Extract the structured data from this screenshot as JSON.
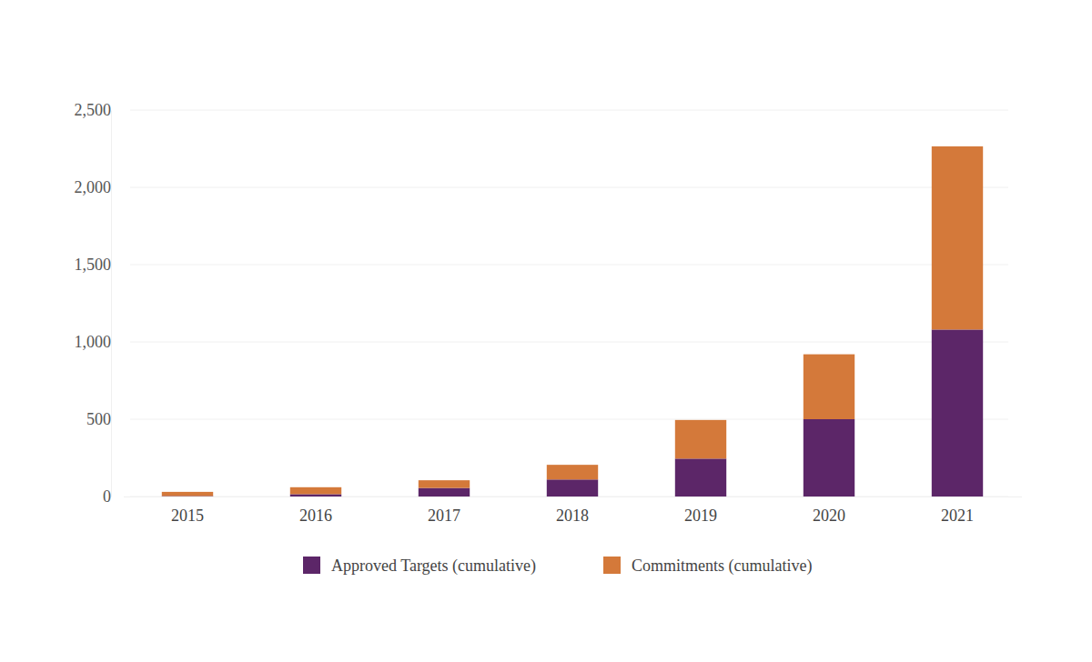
{
  "chart_data": {
    "type": "bar",
    "stacked": true,
    "grid": true,
    "legend": "bottom",
    "categories": [
      "2015",
      "2016",
      "2017",
      "2018",
      "2019",
      "2020",
      "2021"
    ],
    "series": [
      {
        "name": "Approved Targets (cumulative)",
        "color": "#5c2668",
        "values": [
          3,
          15,
          55,
          110,
          245,
          500,
          1080
        ]
      },
      {
        "name": "Commitments (cumulative)",
        "color": "#d4793a",
        "values": [
          27,
          45,
          50,
          95,
          250,
          420,
          1185
        ]
      }
    ],
    "ylim": [
      0,
      2500
    ],
    "yticks": [
      0,
      500,
      {
        "value": 1000,
        "label": "1,000"
      },
      {
        "value": 1500,
        "label": "1,500"
      },
      {
        "value": 2000,
        "label": "2,000"
      },
      {
        "value": 2500,
        "label": "2,500"
      }
    ]
  }
}
